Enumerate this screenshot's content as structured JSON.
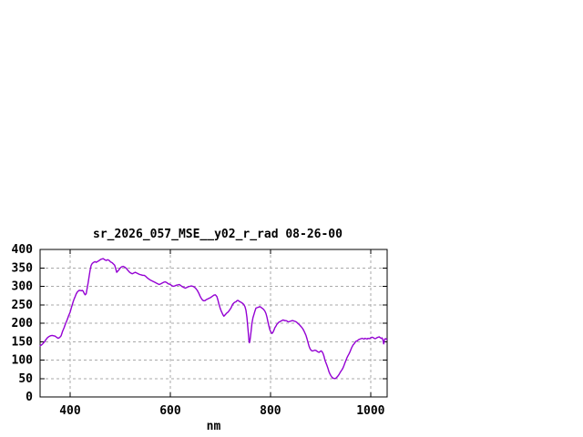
{
  "chart_data": {
    "type": "line",
    "title": "sr_2026_057_MSE__y02_r_rad 08-26-00",
    "xlabel": "nm",
    "ylabel": "",
    "xlim": [
      340,
      1033
    ],
    "ylim": [
      0,
      400
    ],
    "xticks": [
      400,
      600,
      800,
      1000
    ],
    "yticks": [
      0,
      50,
      100,
      150,
      200,
      250,
      300,
      350,
      400
    ],
    "grid": true,
    "legend": "none",
    "colors": {
      "background": "#ffffff",
      "border": "#000000",
      "grid": "#aaaaaa",
      "text": "#000000",
      "line": "#9400d3"
    },
    "series": [
      {
        "points": [
          [
            340,
            139
          ],
          [
            343,
            141
          ],
          [
            346,
            145
          ],
          [
            349,
            150
          ],
          [
            352,
            156
          ],
          [
            355,
            161
          ],
          [
            358,
            164
          ],
          [
            361,
            166
          ],
          [
            364,
            167
          ],
          [
            367,
            166
          ],
          [
            370,
            165
          ],
          [
            373,
            162
          ],
          [
            376,
            159
          ],
          [
            379,
            161
          ],
          [
            382,
            166
          ],
          [
            385,
            178
          ],
          [
            388,
            188
          ],
          [
            391,
            199
          ],
          [
            394,
            209
          ],
          [
            397,
            220
          ],
          [
            400,
            230
          ],
          [
            402,
            240
          ],
          [
            404,
            249
          ],
          [
            406,
            258
          ],
          [
            408,
            266
          ],
          [
            410,
            272
          ],
          [
            412,
            279
          ],
          [
            414,
            284
          ],
          [
            416,
            287
          ],
          [
            418,
            289
          ],
          [
            420,
            289
          ],
          [
            422,
            288
          ],
          [
            424,
            289
          ],
          [
            426,
            287
          ],
          [
            428,
            281
          ],
          [
            430,
            277
          ],
          [
            432,
            280
          ],
          [
            434,
            295
          ],
          [
            436,
            310
          ],
          [
            438,
            328
          ],
          [
            440,
            345
          ],
          [
            442,
            357
          ],
          [
            444,
            362
          ],
          [
            446,
            364
          ],
          [
            448,
            366
          ],
          [
            450,
            367
          ],
          [
            452,
            365
          ],
          [
            454,
            367
          ],
          [
            457,
            369
          ],
          [
            460,
            372
          ],
          [
            463,
            374
          ],
          [
            466,
            375
          ],
          [
            469,
            372
          ],
          [
            472,
            370
          ],
          [
            475,
            372
          ],
          [
            478,
            370
          ],
          [
            481,
            366
          ],
          [
            484,
            364
          ],
          [
            487,
            360
          ],
          [
            489,
            357
          ],
          [
            491,
            348
          ],
          [
            493,
            338
          ],
          [
            495,
            341
          ],
          [
            497,
            344
          ],
          [
            500,
            350
          ],
          [
            503,
            353
          ],
          [
            506,
            354
          ],
          [
            509,
            352
          ],
          [
            512,
            349
          ],
          [
            515,
            344
          ],
          [
            518,
            339
          ],
          [
            521,
            336
          ],
          [
            524,
            334
          ],
          [
            527,
            336
          ],
          [
            530,
            338
          ],
          [
            533,
            336
          ],
          [
            536,
            334
          ],
          [
            539,
            332
          ],
          [
            542,
            331
          ],
          [
            545,
            330
          ],
          [
            548,
            330
          ],
          [
            551,
            327
          ],
          [
            554,
            323
          ],
          [
            557,
            320
          ],
          [
            560,
            317
          ],
          [
            563,
            315
          ],
          [
            566,
            313
          ],
          [
            569,
            311
          ],
          [
            572,
            309
          ],
          [
            575,
            307
          ],
          [
            578,
            305
          ],
          [
            581,
            307
          ],
          [
            584,
            309
          ],
          [
            587,
            311
          ],
          [
            590,
            312
          ],
          [
            593,
            310
          ],
          [
            596,
            307
          ],
          [
            600,
            305
          ],
          [
            603,
            302
          ],
          [
            606,
            300
          ],
          [
            609,
            301
          ],
          [
            612,
            303
          ],
          [
            615,
            304
          ],
          [
            618,
            305
          ],
          [
            621,
            302
          ],
          [
            624,
            299
          ],
          [
            627,
            297
          ],
          [
            630,
            295
          ],
          [
            633,
            297
          ],
          [
            636,
            299
          ],
          [
            639,
            300
          ],
          [
            642,
            301
          ],
          [
            645,
            300
          ],
          [
            648,
            298
          ],
          [
            651,
            294
          ],
          [
            654,
            289
          ],
          [
            657,
            281
          ],
          [
            660,
            272
          ],
          [
            663,
            265
          ],
          [
            666,
            261
          ],
          [
            669,
            261
          ],
          [
            672,
            264
          ],
          [
            675,
            266
          ],
          [
            678,
            268
          ],
          [
            681,
            270
          ],
          [
            684,
            273
          ],
          [
            687,
            276
          ],
          [
            690,
            277
          ],
          [
            693,
            272
          ],
          [
            695,
            263
          ],
          [
            697,
            252
          ],
          [
            699,
            243
          ],
          [
            701,
            235
          ],
          [
            703,
            229
          ],
          [
            705,
            223
          ],
          [
            707,
            219
          ],
          [
            709,
            222
          ],
          [
            711,
            225
          ],
          [
            713,
            228
          ],
          [
            715,
            230
          ],
          [
            717,
            233
          ],
          [
            719,
            237
          ],
          [
            721,
            241
          ],
          [
            723,
            247
          ],
          [
            725,
            252
          ],
          [
            727,
            255
          ],
          [
            729,
            257
          ],
          [
            731,
            258
          ],
          [
            733,
            261
          ],
          [
            735,
            262
          ],
          [
            737,
            260
          ],
          [
            739,
            258
          ],
          [
            741,
            257
          ],
          [
            743,
            255
          ],
          [
            745,
            253
          ],
          [
            747,
            250
          ],
          [
            749,
            245
          ],
          [
            751,
            235
          ],
          [
            753,
            215
          ],
          [
            755,
            185
          ],
          [
            757,
            152
          ],
          [
            758,
            147
          ],
          [
            759,
            153
          ],
          [
            761,
            175
          ],
          [
            763,
            200
          ],
          [
            765,
            215
          ],
          [
            767,
            224
          ],
          [
            769,
            233
          ],
          [
            771,
            241
          ],
          [
            773,
            242
          ],
          [
            775,
            243
          ],
          [
            777,
            244
          ],
          [
            779,
            245
          ],
          [
            781,
            243
          ],
          [
            783,
            241
          ],
          [
            785,
            239
          ],
          [
            787,
            236
          ],
          [
            789,
            232
          ],
          [
            791,
            226
          ],
          [
            793,
            216
          ],
          [
            795,
            203
          ],
          [
            797,
            191
          ],
          [
            799,
            181
          ],
          [
            801,
            176
          ],
          [
            803,
            172
          ],
          [
            805,
            175
          ],
          [
            807,
            181
          ],
          [
            809,
            188
          ],
          [
            811,
            192
          ],
          [
            813,
            197
          ],
          [
            815,
            200
          ],
          [
            817,
            203
          ],
          [
            819,
            204
          ],
          [
            821,
            206
          ],
          [
            823,
            207
          ],
          [
            825,
            209
          ],
          [
            827,
            208
          ],
          [
            829,
            207
          ],
          [
            831,
            207
          ],
          [
            833,
            206
          ],
          [
            835,
            204
          ],
          [
            837,
            204
          ],
          [
            839,
            205
          ],
          [
            841,
            206
          ],
          [
            843,
            207
          ],
          [
            845,
            207
          ],
          [
            847,
            206
          ],
          [
            849,
            205
          ],
          [
            851,
            204
          ],
          [
            853,
            202
          ],
          [
            855,
            199
          ],
          [
            857,
            197
          ],
          [
            859,
            194
          ],
          [
            861,
            191
          ],
          [
            863,
            188
          ],
          [
            865,
            184
          ],
          [
            867,
            179
          ],
          [
            869,
            173
          ],
          [
            871,
            167
          ],
          [
            873,
            158
          ],
          [
            875,
            148
          ],
          [
            877,
            138
          ],
          [
            879,
            131
          ],
          [
            881,
            127
          ],
          [
            883,
            125
          ],
          [
            885,
            125
          ],
          [
            887,
            126
          ],
          [
            889,
            127
          ],
          [
            891,
            126
          ],
          [
            893,
            124
          ],
          [
            895,
            122
          ],
          [
            897,
            121
          ],
          [
            899,
            123
          ],
          [
            901,
            125
          ],
          [
            903,
            123
          ],
          [
            905,
            118
          ],
          [
            907,
            110
          ],
          [
            909,
            99
          ],
          [
            911,
            92
          ],
          [
            913,
            85
          ],
          [
            915,
            77
          ],
          [
            917,
            68
          ],
          [
            919,
            62
          ],
          [
            921,
            57
          ],
          [
            923,
            53
          ],
          [
            925,
            51
          ],
          [
            927,
            50
          ],
          [
            929,
            50
          ],
          [
            931,
            51
          ],
          [
            933,
            54
          ],
          [
            935,
            57
          ],
          [
            937,
            61
          ],
          [
            939,
            66
          ],
          [
            941,
            70
          ],
          [
            943,
            74
          ],
          [
            945,
            79
          ],
          [
            947,
            86
          ],
          [
            949,
            93
          ],
          [
            951,
            100
          ],
          [
            953,
            107
          ],
          [
            955,
            112
          ],
          [
            957,
            117
          ],
          [
            959,
            123
          ],
          [
            961,
            130
          ],
          [
            963,
            136
          ],
          [
            965,
            141
          ],
          [
            967,
            144
          ],
          [
            969,
            148
          ],
          [
            971,
            151
          ],
          [
            973,
            152
          ],
          [
            975,
            154
          ],
          [
            977,
            156
          ],
          [
            979,
            157
          ],
          [
            981,
            158
          ],
          [
            983,
            159
          ],
          [
            985,
            158
          ],
          [
            987,
            157
          ],
          [
            989,
            159
          ],
          [
            991,
            158
          ],
          [
            993,
            157
          ],
          [
            995,
            159
          ],
          [
            997,
            158
          ],
          [
            999,
            159
          ],
          [
            1001,
            161
          ],
          [
            1003,
            162
          ],
          [
            1005,
            161
          ],
          [
            1007,
            159
          ],
          [
            1009,
            158
          ],
          [
            1011,
            159
          ],
          [
            1013,
            161
          ],
          [
            1015,
            162
          ],
          [
            1017,
            163
          ],
          [
            1019,
            161
          ],
          [
            1021,
            159
          ],
          [
            1023,
            160
          ],
          [
            1025,
            152
          ],
          [
            1026,
            144
          ],
          [
            1027,
            150
          ],
          [
            1028,
            157
          ],
          [
            1030,
            158
          ],
          [
            1032,
            156
          ]
        ]
      }
    ]
  }
}
